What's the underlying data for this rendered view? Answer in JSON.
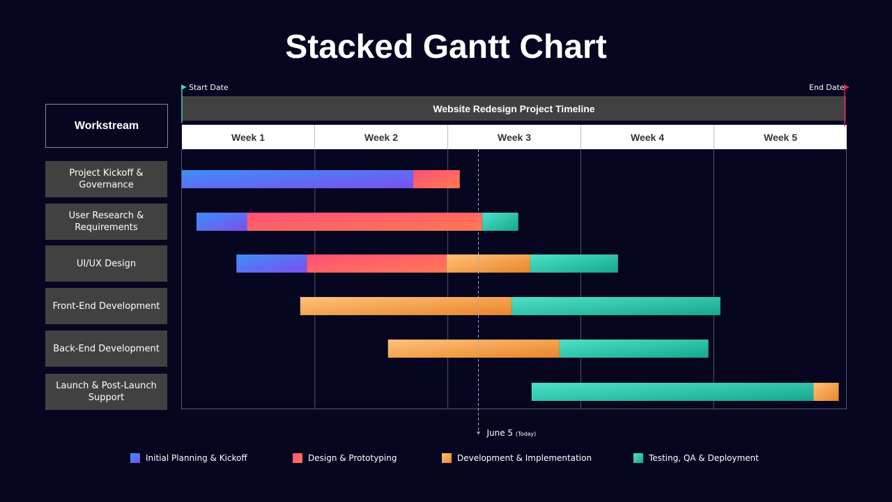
{
  "title": "Stacked Gantt Chart",
  "start_label": "Start Date",
  "end_label": "End Date",
  "timeline_title": "Website Redesign Project Timeline",
  "workstream_header": "Workstream",
  "today_label": "June 5",
  "today_sub": "(Today)",
  "colors": {
    "background": "#070620",
    "start_flag": "#3fd0c0",
    "end_flag": "#e0245e"
  },
  "chart_data": {
    "type": "gantt",
    "x_unit": "week",
    "xlim": [
      0,
      5
    ],
    "weeks": [
      "Week 1",
      "Week 2",
      "Week 3",
      "Week 4",
      "Week 5"
    ],
    "today": 2.23,
    "phases": [
      {
        "name": "Initial Planning & Kickoff",
        "color_from": "#3d8ff7",
        "color_to": "#7b4ff0"
      },
      {
        "name": "Design & Prototyping",
        "color_from": "#ff4f7a",
        "color_to": "#ff7a50"
      },
      {
        "name": "Development & Implementation",
        "color_from": "#ffc27a",
        "color_to": "#e8862a"
      },
      {
        "name": "Testing, QA & Deployment",
        "color_from": "#4fe0c8",
        "color_to": "#16a78f"
      }
    ],
    "rows": [
      {
        "label": "Project Kickoff & Governance",
        "segments": [
          {
            "phase": 0,
            "start": 0.0,
            "end": 1.74
          },
          {
            "phase": 1,
            "start": 1.74,
            "end": 2.09
          }
        ]
      },
      {
        "label": "User Research & Requirements",
        "segments": [
          {
            "phase": 0,
            "start": 0.11,
            "end": 0.49
          },
          {
            "phase": 1,
            "start": 0.49,
            "end": 2.26
          },
          {
            "phase": 3,
            "start": 2.26,
            "end": 2.53
          }
        ]
      },
      {
        "label": "UI/UX Design",
        "segments": [
          {
            "phase": 0,
            "start": 0.41,
            "end": 0.94
          },
          {
            "phase": 1,
            "start": 0.94,
            "end": 1.99
          },
          {
            "phase": 2,
            "start": 1.99,
            "end": 2.62
          },
          {
            "phase": 3,
            "start": 2.62,
            "end": 3.28
          }
        ]
      },
      {
        "label": "Front-End Development",
        "segments": [
          {
            "phase": 2,
            "start": 0.89,
            "end": 2.48
          },
          {
            "phase": 3,
            "start": 2.48,
            "end": 4.05
          }
        ]
      },
      {
        "label": "Back-End Development",
        "segments": [
          {
            "phase": 2,
            "start": 1.55,
            "end": 2.84
          },
          {
            "phase": 3,
            "start": 2.84,
            "end": 3.96
          }
        ]
      },
      {
        "label": "Launch & Post-Launch Support",
        "segments": [
          {
            "phase": 3,
            "start": 2.63,
            "end": 4.75
          },
          {
            "phase": 2,
            "start": 4.75,
            "end": 4.94
          }
        ]
      }
    ]
  }
}
